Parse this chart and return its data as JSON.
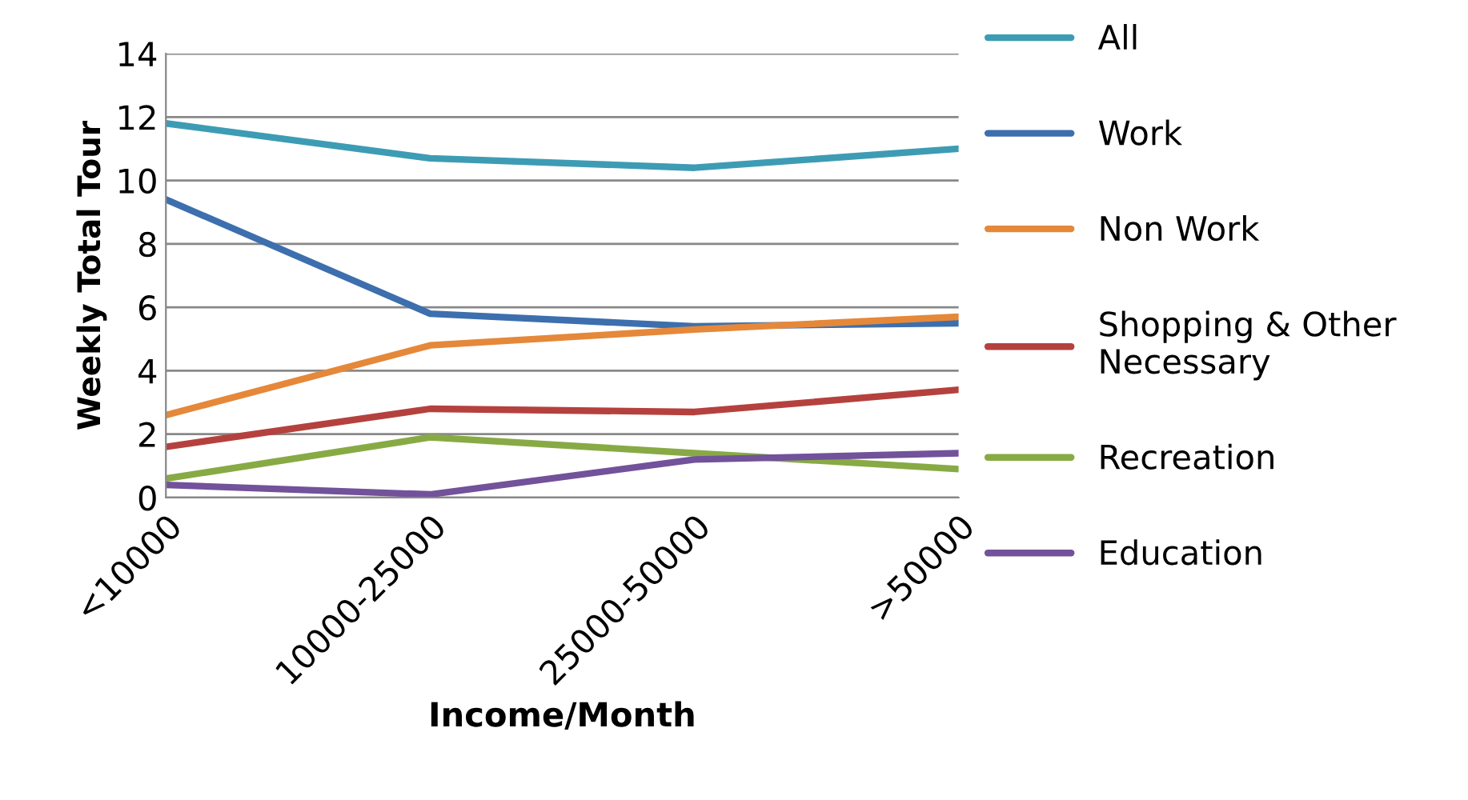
{
  "chart_data": {
    "type": "line",
    "xlabel": "Income/Month",
    "ylabel": "Weekly Total Tour",
    "categories": [
      "<10000",
      "10000-25000",
      "25000-50000",
      ">50000"
    ],
    "series": [
      {
        "name": "All",
        "color": "#3d9cb4",
        "values": [
          11.8,
          10.7,
          10.4,
          11.0
        ]
      },
      {
        "name": "Work",
        "color": "#3d6fae",
        "values": [
          9.4,
          5.8,
          5.4,
          5.5
        ]
      },
      {
        "name": "Non Work",
        "color": "#e5883a",
        "values": [
          2.6,
          4.8,
          5.3,
          5.7
        ]
      },
      {
        "name": "Shopping & Other\nNecessary",
        "color": "#b5413e",
        "values": [
          1.6,
          2.8,
          2.7,
          3.4
        ]
      },
      {
        "name": "Recreation",
        "color": "#88aa45",
        "values": [
          0.6,
          1.9,
          1.4,
          0.9
        ]
      },
      {
        "name": "Education",
        "color": "#72529a",
        "values": [
          0.4,
          0.1,
          1.2,
          1.4
        ]
      }
    ],
    "ylim": [
      0,
      14
    ],
    "yticks": [
      0,
      2,
      4,
      6,
      8,
      10,
      12,
      14
    ],
    "grid": "y",
    "legend": "right",
    "marker": "none",
    "line_style": "solid"
  }
}
